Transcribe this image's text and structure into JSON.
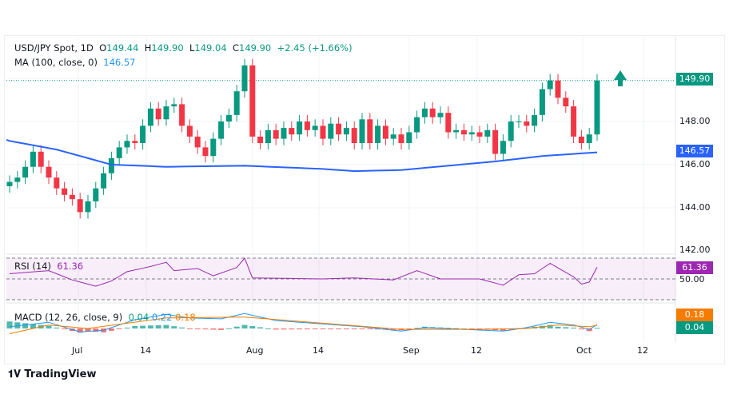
{
  "header": {
    "symbol": "USD/JPY Spot, 1D",
    "o_label": "O",
    "o": "149.44",
    "h_label": "H",
    "h": "149.90",
    "l_label": "L",
    "l": "149.04",
    "c_label": "C",
    "c": "149.90",
    "change": "+2.45 (+1.66%)"
  },
  "ma": {
    "label": "MA (100, close, 0)",
    "value": "146.57"
  },
  "rsi": {
    "label": "RSI (14)",
    "value": "61.36",
    "level": "50.00"
  },
  "macd": {
    "label": "MACD (12, 26, close, 9)",
    "hist": "0.04",
    "macd": "0.22",
    "signal": "0.18"
  },
  "price_tag": "149.90",
  "ma_tag": "146.57",
  "macd_tag_signal": "0.18",
  "macd_tag_hist": "0.04",
  "brand": "TradingView",
  "colors": {
    "up": "#089981",
    "down": "#f23645",
    "ma": "#2962ff",
    "rsi": "#9c27b0",
    "signal": "#f57c00"
  },
  "chart_data": {
    "type": "candlestick",
    "start_close": 145.0,
    "closes": [
      145.2,
      145.4,
      145.9,
      146.6,
      145.9,
      145.4,
      144.9,
      144.6,
      144.4,
      143.8,
      144.3,
      144.9,
      145.6,
      146.3,
      146.8,
      147.1,
      147.0,
      147.8,
      148.6,
      148.1,
      148.7,
      148.8,
      147.8,
      147.3,
      146.8,
      146.4,
      147.2,
      148.0,
      148.3,
      149.4,
      150.6,
      147.3,
      147.0,
      147.6,
      147.2,
      147.7,
      147.4,
      148.0,
      147.6,
      147.8,
      147.2,
      147.9,
      147.4,
      147.7,
      147.0,
      148.1,
      147.0,
      147.8,
      147.2,
      147.4,
      147.0,
      147.5,
      148.2,
      148.6,
      148.2,
      148.4,
      147.5,
      147.6,
      147.4,
      147.5,
      147.3,
      147.6,
      146.5,
      147.1,
      148.0,
      148.0,
      147.8,
      148.3,
      149.5,
      149.9,
      149.1,
      148.7,
      147.3,
      147.0,
      147.4,
      149.9
    ],
    "ma_points": [
      [
        0,
        147.1
      ],
      [
        6,
        146.7
      ],
      [
        13,
        146.0
      ],
      [
        20,
        145.9
      ],
      [
        30,
        145.95
      ],
      [
        40,
        145.8
      ],
      [
        44,
        145.7
      ],
      [
        50,
        145.75
      ],
      [
        56,
        145.95
      ],
      [
        62,
        146.15
      ],
      [
        68,
        146.4
      ],
      [
        75,
        146.57
      ]
    ],
    "rsi_points": [
      [
        0,
        55
      ],
      [
        5,
        58
      ],
      [
        8,
        49
      ],
      [
        11,
        43
      ],
      [
        13,
        48
      ],
      [
        15,
        57
      ],
      [
        18,
        62
      ],
      [
        20,
        66
      ],
      [
        21,
        58
      ],
      [
        24,
        60
      ],
      [
        26,
        53
      ],
      [
        29,
        61
      ],
      [
        30,
        70
      ],
      [
        31,
        51
      ],
      [
        40,
        50
      ],
      [
        44,
        51
      ],
      [
        49,
        49
      ],
      [
        52,
        58
      ],
      [
        55,
        50
      ],
      [
        60,
        50
      ],
      [
        63,
        44
      ],
      [
        65,
        54
      ],
      [
        67,
        55
      ],
      [
        69,
        65
      ],
      [
        72,
        52
      ],
      [
        73,
        45
      ],
      [
        74,
        47
      ],
      [
        75,
        61.36
      ]
    ],
    "macd_points": [
      [
        0,
        0.1
      ],
      [
        5,
        0.35
      ],
      [
        9,
        -0.2
      ],
      [
        12,
        -0.1
      ],
      [
        16,
        0.5
      ],
      [
        20,
        0.8
      ],
      [
        23,
        0.6
      ],
      [
        27,
        0.55
      ],
      [
        30,
        0.85
      ],
      [
        34,
        0.45
      ],
      [
        45,
        0.1
      ],
      [
        50,
        -0.15
      ],
      [
        53,
        0.05
      ],
      [
        58,
        -0.05
      ],
      [
        63,
        -0.15
      ],
      [
        66,
        0.05
      ],
      [
        69,
        0.35
      ],
      [
        72,
        0.2
      ],
      [
        74,
        -0.05
      ],
      [
        75,
        0.22
      ]
    ],
    "signal_points": [
      [
        0,
        -0.3
      ],
      [
        5,
        0.2
      ],
      [
        10,
        0.0
      ],
      [
        15,
        0.3
      ],
      [
        20,
        0.6
      ],
      [
        30,
        0.65
      ],
      [
        40,
        0.3
      ],
      [
        50,
        -0.05
      ],
      [
        60,
        -0.05
      ],
      [
        66,
        0.0
      ],
      [
        70,
        0.2
      ],
      [
        74,
        0.1
      ],
      [
        75,
        0.18
      ]
    ],
    "x_ticks": [
      "Jul",
      "14",
      "Aug",
      "14",
      "Sep",
      "12",
      "Oct",
      "12"
    ],
    "y_ticks": [
      "142.00",
      "144.00",
      "146.00",
      "148.00"
    ],
    "y_range": [
      141.5,
      151.5
    ]
  }
}
